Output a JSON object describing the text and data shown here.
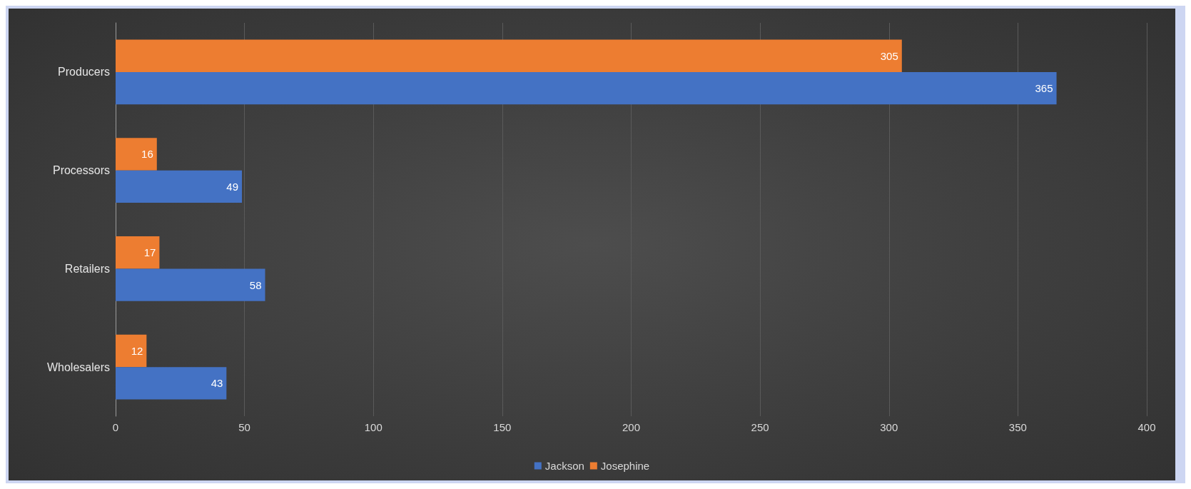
{
  "chart_data": {
    "type": "bar",
    "orientation": "horizontal",
    "categories": [
      "Producers",
      "Processors",
      "Retailers",
      "Wholesalers"
    ],
    "series": [
      {
        "name": "Jackson",
        "color": "#4472c4",
        "values": [
          365,
          49,
          58,
          43
        ]
      },
      {
        "name": "Josephine",
        "color": "#ed7d31",
        "values": [
          305,
          16,
          17,
          12
        ]
      }
    ],
    "xlim": [
      0,
      400
    ],
    "xticks": [
      0,
      50,
      100,
      150,
      200,
      250,
      300,
      350,
      400
    ],
    "grid": "x",
    "legend": "bottom",
    "data_labels": true
  }
}
